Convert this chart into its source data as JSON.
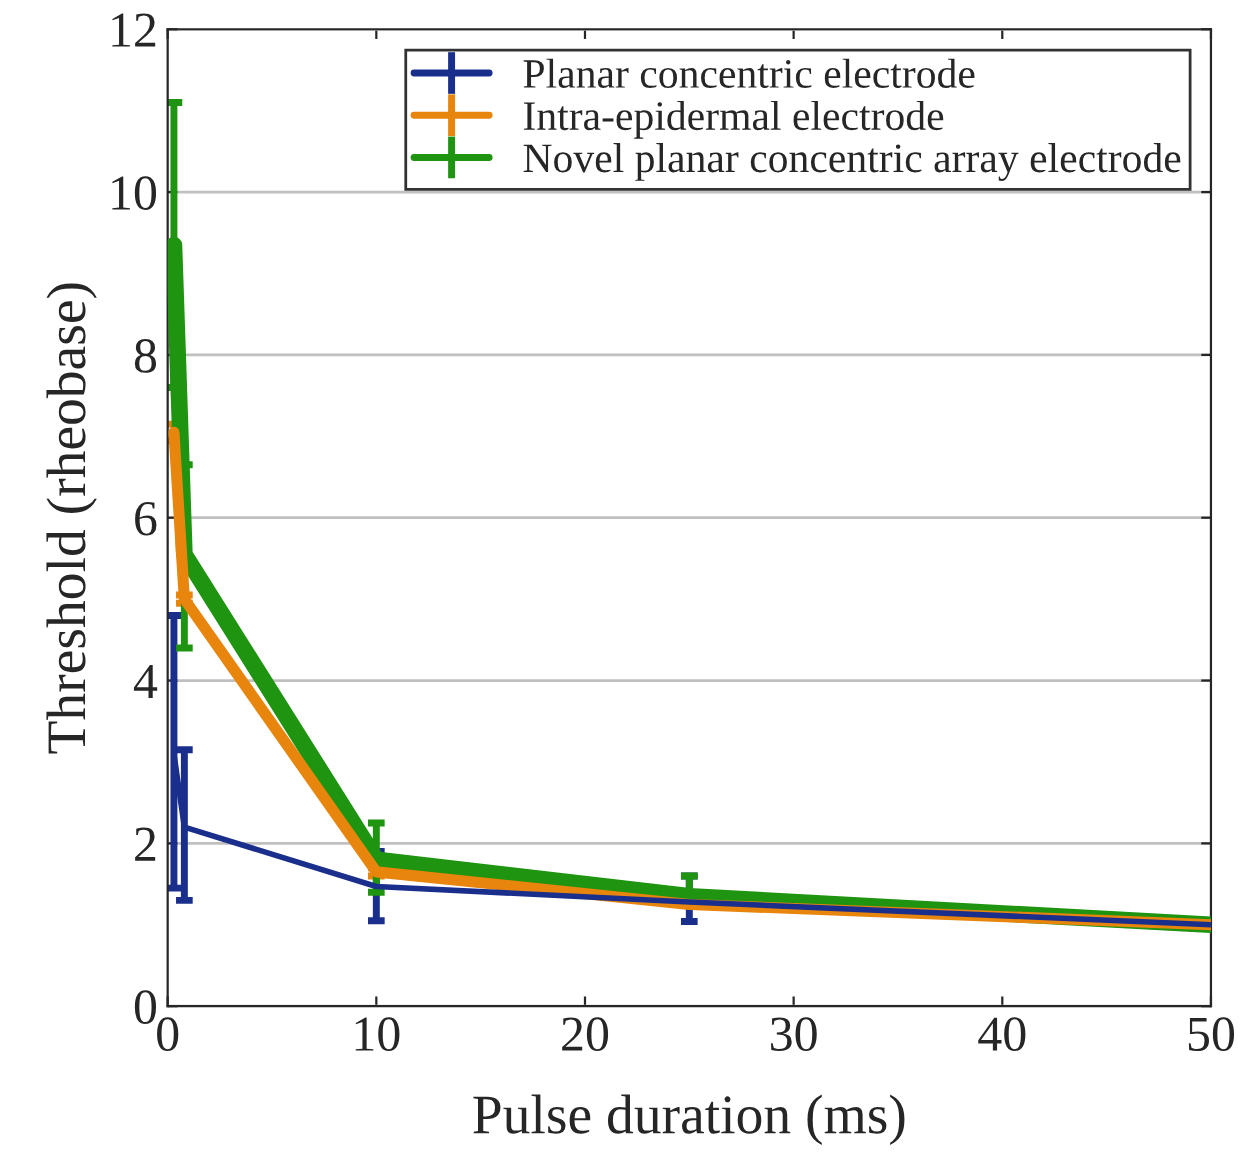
{
  "chart_data": {
    "type": "line",
    "xlabel": "Pulse duration (ms)",
    "ylabel": "Threshold (rheobase)",
    "x": [
      0.3,
      0.8,
      10,
      25,
      50
    ],
    "series": [
      {
        "name": "Planar concentric electrode",
        "color": "#1a2f8c",
        "values": [
          3.1,
          2.2,
          1.47,
          1.28,
          1.0
        ],
        "errors": [
          [
            1.45,
            4.8
          ],
          [
            1.3,
            3.15
          ],
          [
            1.05,
            1.9
          ],
          [
            1.04,
            1.6
          ],
          null
        ]
      },
      {
        "name": "Intra-epidermal electrode",
        "color": "#e8850c",
        "values": [
          7.05,
          5.0,
          1.65,
          1.25,
          1.0
        ],
        "errors": [
          [
            6.95,
            7.15
          ],
          [
            4.95,
            5.05
          ],
          [
            1.6,
            1.7
          ],
          null,
          null
        ]
      },
      {
        "name": "Novel planar concentric array electrode",
        "color": "#1e9410",
        "values": [
          9.35,
          5.55,
          1.8,
          1.35,
          1.0
        ],
        "errors": [
          [
            7.6,
            11.1
          ],
          [
            4.4,
            6.65
          ],
          [
            1.4,
            2.25
          ],
          [
            1.3,
            1.6
          ],
          null
        ]
      }
    ],
    "xlim": [
      0,
      50
    ],
    "xticks": [
      0,
      10,
      20,
      30,
      40,
      50
    ],
    "ylim": [
      0,
      12
    ],
    "yticks": [
      0,
      2,
      4,
      6,
      8,
      10,
      12
    ],
    "grid": "y",
    "legend": "top right"
  }
}
